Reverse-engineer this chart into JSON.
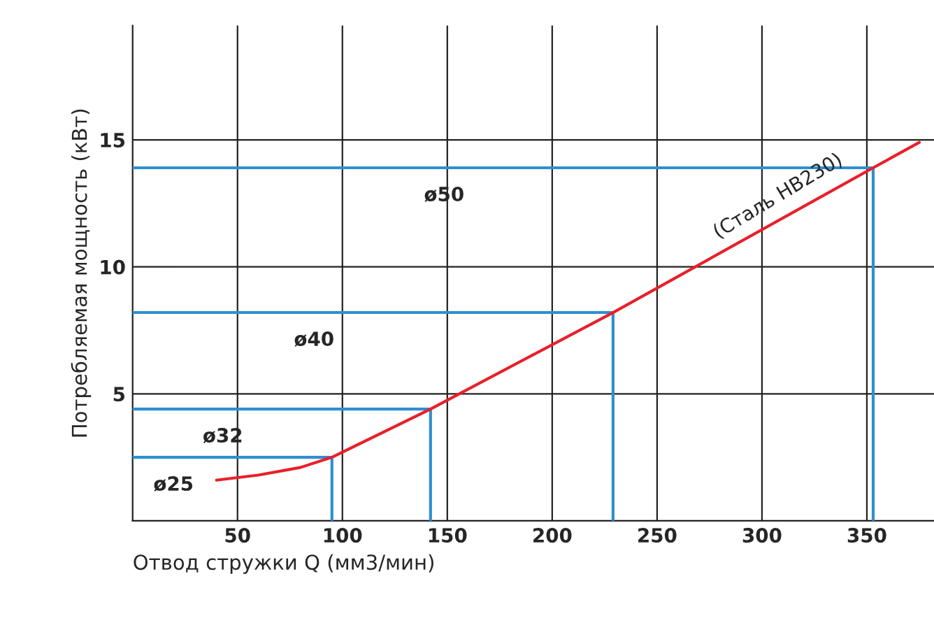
{
  "chart_data": {
    "type": "line",
    "xlabel": "Отвод стружки Q (мм3/мин)",
    "ylabel": "Потребляемая мощность (кВт)",
    "xlim": [
      0,
      382
    ],
    "ylim": [
      0,
      19.5
    ],
    "xticks": [
      50,
      100,
      150,
      200,
      250,
      300,
      350
    ],
    "yticks": [
      5,
      10,
      15
    ],
    "grid": true,
    "legend": false,
    "marker": "none",
    "line_style": "solid",
    "series": [
      {
        "color": "#e8202a",
        "x": [
          40,
          60,
          80,
          95,
          142,
          229,
          353,
          375
        ],
        "values": [
          1.6,
          1.8,
          2.1,
          2.5,
          4.4,
          8.2,
          13.9,
          14.9
        ]
      },
      {
        "name": "ø25",
        "color": "#2f8fcf",
        "x": [
          0,
          95,
          95
        ],
        "values": [
          2.5,
          2.5,
          0
        ]
      },
      {
        "name": "ø32",
        "color": "#2f8fcf",
        "x": [
          0,
          142,
          142
        ],
        "values": [
          4.4,
          4.4,
          0
        ]
      },
      {
        "name": "ø40",
        "color": "#2f8fcf",
        "x": [
          0,
          229,
          229
        ],
        "values": [
          8.2,
          8.2,
          0
        ]
      },
      {
        "name": "ø50",
        "color": "#2f8fcf",
        "x": [
          0,
          353,
          353
        ],
        "values": [
          13.9,
          13.9,
          0
        ]
      }
    ],
    "annotations": [
      {
        "text": "(Сталь HB230)",
        "x": 280,
        "y": 10.5
      }
    ]
  }
}
